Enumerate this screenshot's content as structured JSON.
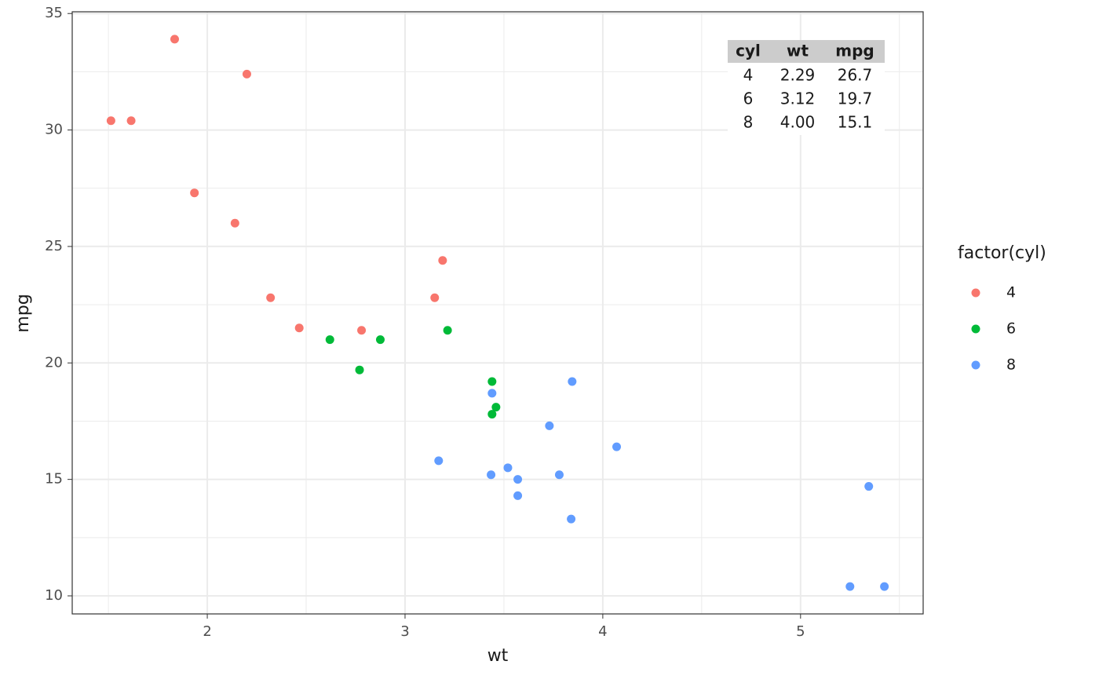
{
  "chart_data": {
    "type": "scatter",
    "xlabel": "wt",
    "ylabel": "mpg",
    "xlim": [
      1.317,
      5.62
    ],
    "ylim": [
      9.225,
      35.075
    ],
    "xticks": [
      2,
      3,
      4,
      5
    ],
    "yticks": [
      10,
      15,
      20,
      25,
      30,
      35
    ],
    "grid": true,
    "legend_title": "factor(cyl)",
    "legend_position": "right",
    "series": [
      {
        "name": "4",
        "color": "#F8766D",
        "x": [
          2.32,
          3.19,
          3.15,
          2.2,
          1.615,
          1.835,
          2.465,
          1.935,
          2.14,
          1.513,
          2.78
        ],
        "values": [
          22.8,
          24.4,
          22.8,
          32.4,
          30.4,
          33.9,
          21.5,
          27.3,
          26.0,
          30.4,
          21.4
        ]
      },
      {
        "name": "6",
        "color": "#00BA38",
        "x": [
          2.62,
          2.875,
          3.215,
          3.46,
          3.44,
          3.44,
          2.77
        ],
        "values": [
          21.0,
          21.0,
          21.4,
          18.1,
          19.2,
          17.8,
          19.7
        ]
      },
      {
        "name": "8",
        "color": "#619CFF",
        "x": [
          3.44,
          3.57,
          4.07,
          3.73,
          3.78,
          5.25,
          5.424,
          5.345,
          3.52,
          3.435,
          3.84,
          3.845,
          3.17,
          3.57
        ],
        "values": [
          18.7,
          14.3,
          16.4,
          17.3,
          15.2,
          10.4,
          10.4,
          14.7,
          15.5,
          15.2,
          13.3,
          19.2,
          15.8,
          15.0
        ]
      }
    ],
    "table": {
      "columns": [
        "cyl",
        "wt",
        "mpg"
      ],
      "rows": [
        [
          "4",
          "2.29",
          "26.7"
        ],
        [
          "6",
          "3.12",
          "19.7"
        ],
        [
          "8",
          "4.00",
          "15.1"
        ]
      ]
    }
  }
}
